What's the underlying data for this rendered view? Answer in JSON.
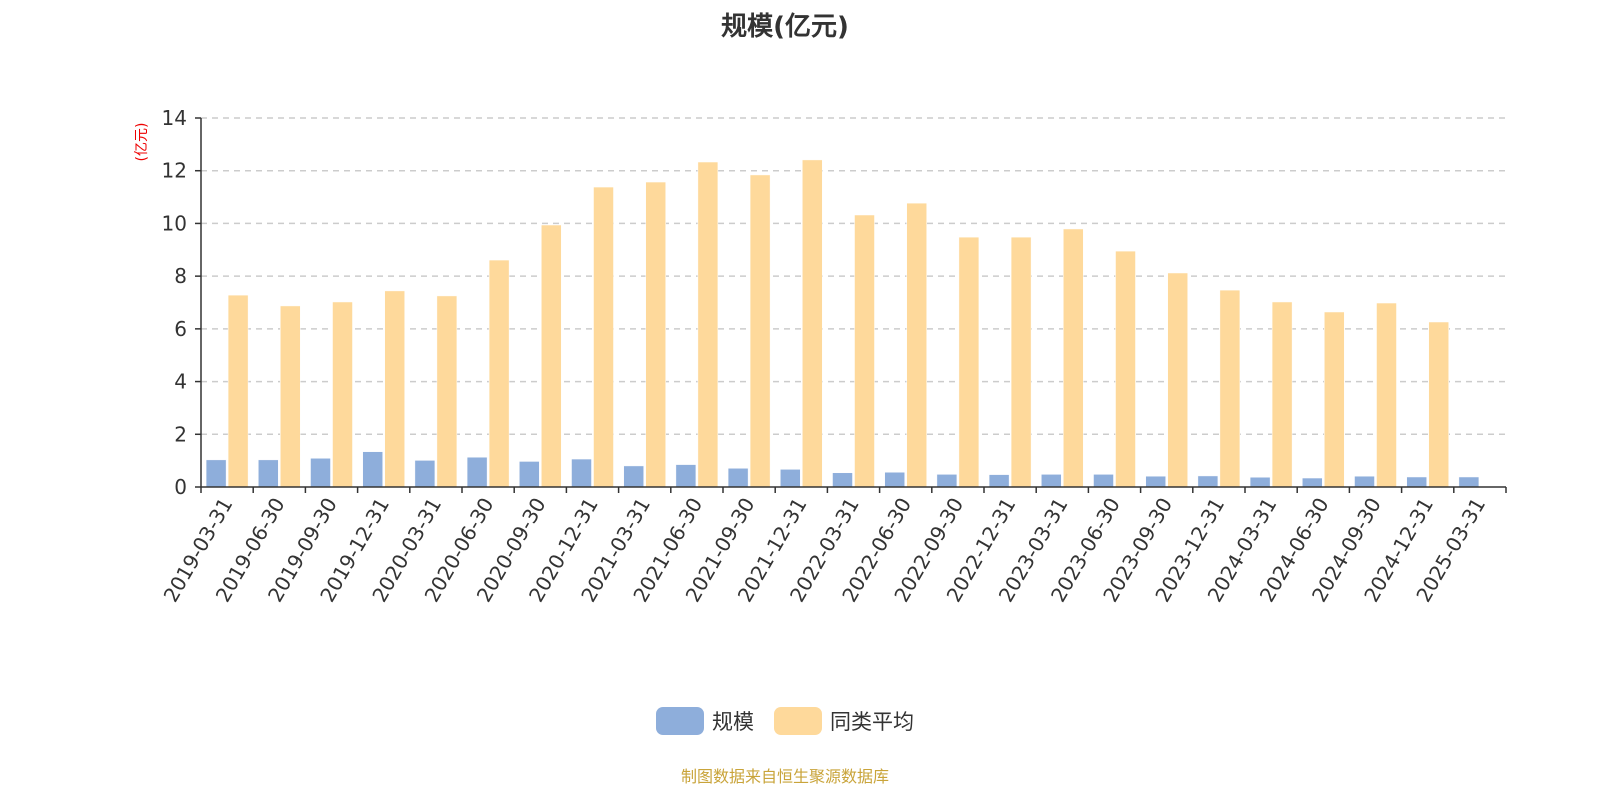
{
  "chart_data": {
    "type": "bar",
    "title": "规模(亿元)",
    "ylabel": "(亿元)",
    "xlabel": "",
    "ylim": [
      0,
      14
    ],
    "yticks": [
      0,
      2,
      4,
      6,
      8,
      10,
      12,
      14
    ],
    "grid": true,
    "legend_position": "bottom",
    "categories": [
      "2019-03-31",
      "2019-06-30",
      "2019-09-30",
      "2019-12-31",
      "2020-03-31",
      "2020-06-30",
      "2020-09-30",
      "2020-12-31",
      "2021-03-31",
      "2021-06-30",
      "2021-09-30",
      "2021-12-31",
      "2022-03-31",
      "2022-06-30",
      "2022-09-30",
      "2022-12-31",
      "2023-03-31",
      "2023-06-30",
      "2023-09-30",
      "2023-12-31",
      "2024-03-31",
      "2024-06-30",
      "2024-09-30",
      "2024-12-31",
      "2025-03-31"
    ],
    "series": [
      {
        "name": "规模",
        "color": "#8eaedb",
        "values": [
          1.03,
          1.03,
          1.09,
          1.34,
          1.01,
          1.13,
          0.97,
          1.06,
          0.8,
          0.85,
          0.71,
          0.67,
          0.54,
          0.56,
          0.48,
          0.47,
          0.48,
          0.48,
          0.41,
          0.42,
          0.37,
          0.34,
          0.41,
          0.38,
          0.38
        ]
      },
      {
        "name": "同类平均",
        "color": "#fed99b",
        "values": [
          7.28,
          6.87,
          7.02,
          7.44,
          7.25,
          8.61,
          9.94,
          11.38,
          11.57,
          12.33,
          11.84,
          12.41,
          10.32,
          10.77,
          9.48,
          9.48,
          9.79,
          8.95,
          8.12,
          7.47,
          7.02,
          6.64,
          6.98,
          6.26,
          null
        ]
      }
    ]
  },
  "footer": "制图数据来自恒生聚源数据库"
}
